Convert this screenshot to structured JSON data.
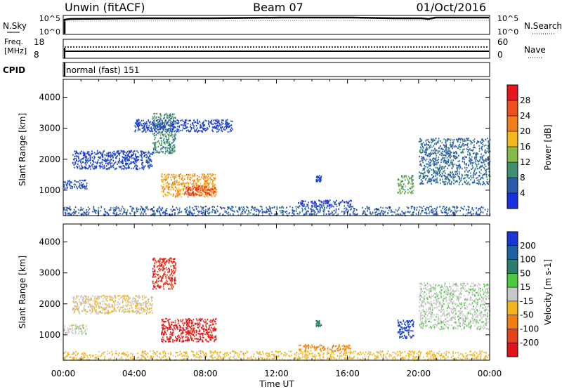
{
  "header": {
    "station": "Unwin (fitACF)",
    "beam": "Beam 07",
    "date": "01/Oct/2016"
  },
  "noise_panel": {
    "left_label": "N.Sky",
    "right_label": "N.Search",
    "left_ticks": [
      "10^5",
      "10^0"
    ],
    "right_ticks": [
      "10^5",
      "10^0"
    ]
  },
  "freq_panel": {
    "left_label_1": "Freq.",
    "left_label_2": "[MHz]",
    "left_ticks": [
      "18",
      "8"
    ],
    "right_label": "Nave",
    "right_ticks": [
      "60",
      "0"
    ]
  },
  "cpid": {
    "label": "CPID",
    "value": "normal (fast) 151"
  },
  "power_colorbar": {
    "label": "Power [dB]",
    "ticks": [
      "28",
      "24",
      "20",
      "16",
      "12",
      "8",
      "4"
    ],
    "colors": [
      "#e8161a",
      "#f0501e",
      "#f27d1e",
      "#f4b81e",
      "#86bb4c",
      "#3f8f71",
      "#2a5bb0",
      "#1a2fe0"
    ]
  },
  "velocity_colorbar": {
    "label": "Velocity [m s-1]",
    "ticks": [
      "200",
      "100",
      "50",
      "15",
      "-15",
      "-50",
      "-100",
      "-200"
    ],
    "colors": [
      "#1a35d8",
      "#1e62a4",
      "#2c7d6b",
      "#4ec840",
      "#c8c8c8",
      "#f4b41e",
      "#f07f12",
      "#e8421a",
      "#e4121a"
    ]
  },
  "chart_data": {
    "type": "heatmap",
    "xlabel": "Time UT",
    "x_ticks": [
      "00:00",
      "04:00",
      "08:00",
      "12:00",
      "16:00",
      "20:00",
      "00:00"
    ],
    "x_range_hours": [
      0,
      24
    ],
    "panels": [
      {
        "ylabel": "Slant Range [km]",
        "y_ticks": [
          "4000",
          "3000",
          "2000",
          "1000"
        ],
        "y_range_km": [
          180,
          4580
        ],
        "quantity": "Power [dB]",
        "regions": [
          {
            "t": [
              5.5,
              8.6
            ],
            "r": [
              800,
              1550
            ],
            "value": 22
          },
          {
            "t": [
              6.8,
              8.5
            ],
            "r": [
              850,
              1150
            ],
            "value": 29
          },
          {
            "t": [
              5.0,
              6.3
            ],
            "r": [
              2200,
              3500
            ],
            "value": 12
          },
          {
            "t": [
              0.5,
              5.0
            ],
            "r": [
              1700,
              2300
            ],
            "value": 6
          },
          {
            "t": [
              0.0,
              1.3
            ],
            "r": [
              1050,
              1350
            ],
            "value": 7
          },
          {
            "t": [
              4.0,
              9.5
            ],
            "r": [
              2900,
              3300
            ],
            "value": 6
          },
          {
            "t": [
              13.2,
              16.2
            ],
            "r": [
              500,
              700
            ],
            "value": 5
          },
          {
            "t": [
              14.2,
              14.5
            ],
            "r": [
              1300,
              1500
            ],
            "value": 6
          },
          {
            "t": [
              18.8,
              19.7
            ],
            "r": [
              900,
              1500
            ],
            "value": 14
          },
          {
            "t": [
              20.0,
              24.0
            ],
            "r": [
              1200,
              2700
            ],
            "value": 9
          },
          {
            "t": [
              0.0,
              24.0
            ],
            "r": [
              200,
              500
            ],
            "value": 8
          }
        ]
      },
      {
        "ylabel": "Slant Range [km]",
        "y_ticks": [
          "4000",
          "3000",
          "2000",
          "1000"
        ],
        "y_range_km": [
          180,
          4580
        ],
        "quantity": "Velocity [m s-1]",
        "regions": [
          {
            "t": [
              5.5,
              8.6
            ],
            "r": [
              800,
              1550
            ],
            "value": -210
          },
          {
            "t": [
              5.0,
              6.3
            ],
            "r": [
              2500,
              3500
            ],
            "value": -200
          },
          {
            "t": [
              0.5,
              5.0
            ],
            "r": [
              1700,
              2300
            ],
            "value": -10
          },
          {
            "t": [
              0.0,
              1.3
            ],
            "r": [
              1050,
              1350
            ],
            "value": 0
          },
          {
            "t": [
              13.2,
              16.2
            ],
            "r": [
              500,
              700
            ],
            "value": -60
          },
          {
            "t": [
              14.2,
              14.5
            ],
            "r": [
              1300,
              1500
            ],
            "value": 70
          },
          {
            "t": [
              18.8,
              19.7
            ],
            "r": [
              900,
              1500
            ],
            "value": 210
          },
          {
            "t": [
              20.0,
              24.0
            ],
            "r": [
              1200,
              2700
            ],
            "value": 5
          },
          {
            "t": [
              0.0,
              24.0
            ],
            "r": [
              200,
              500
            ],
            "value": -30
          }
        ]
      }
    ]
  }
}
